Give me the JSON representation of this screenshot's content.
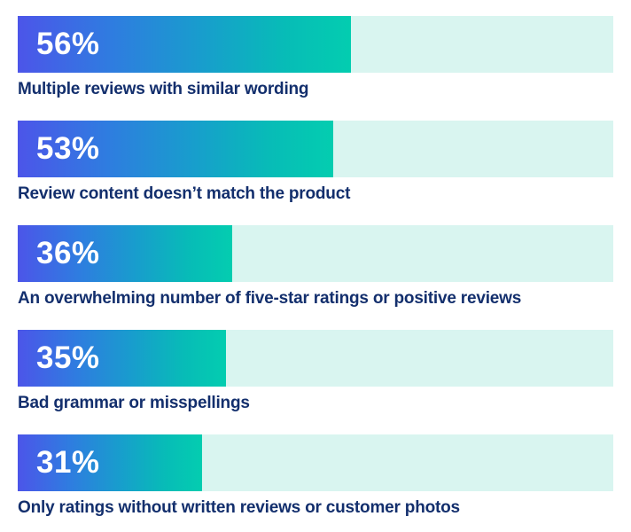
{
  "chart_data": {
    "type": "bar",
    "orientation": "horizontal",
    "title": "",
    "xlabel": "",
    "ylabel": "",
    "xlim": [
      0,
      100
    ],
    "grid": false,
    "legend": "none",
    "categories": [
      "Multiple reviews with similar wording",
      "Review content doesn’t match the product",
      "An overwhelming number of five-star ratings or positive reviews",
      "Bad grammar or misspellings",
      "Only ratings without written reviews or customer photos"
    ],
    "values": [
      56,
      53,
      36,
      35,
      31
    ],
    "rows": [
      {
        "label": "Multiple reviews with similar wording",
        "value": 56,
        "value_label": "56%"
      },
      {
        "label": "Review content doesn’t match the product",
        "value": 53,
        "value_label": "53%"
      },
      {
        "label": "An overwhelming number of five-star ratings or positive reviews",
        "value": 36,
        "value_label": "36%"
      },
      {
        "label": "Bad grammar or misspellings",
        "value": 35,
        "value_label": "35%"
      },
      {
        "label": "Only ratings without written reviews or customer photos",
        "value": 31,
        "value_label": "31%"
      }
    ],
    "colors": {
      "bar_gradient_start": "#4c55e9",
      "bar_gradient_mid": "#189dcd",
      "bar_gradient_end": "#03cdb0",
      "track": "#d9f5f0",
      "value_text": "#ffffff",
      "label_text": "#132f6d",
      "background": "#ffffff"
    }
  }
}
